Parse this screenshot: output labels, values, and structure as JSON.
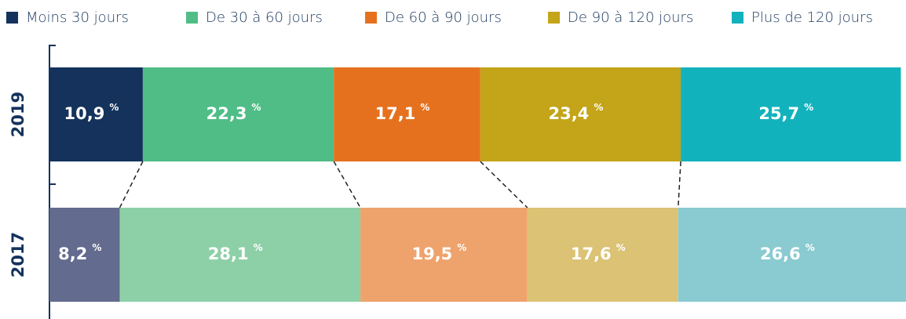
{
  "chart_data": {
    "type": "stacked-bar-horizontal",
    "categories": [
      "2019",
      "2017"
    ],
    "value_unit": "%",
    "series": [
      {
        "name": "Moins 30 jours",
        "colors": [
          "#14325c",
          "#636b8e"
        ],
        "values": [
          10.9,
          8.2
        ],
        "value_labels": [
          "10,9",
          "8,2"
        ]
      },
      {
        "name": "De 30 à 60 jours",
        "colors": [
          "#50bd87",
          "#8dd0a8"
        ],
        "values": [
          22.3,
          28.1
        ],
        "value_labels": [
          "22,3",
          "28,1"
        ]
      },
      {
        "name": "De 60 à 90 jours",
        "colors": [
          "#e5711f",
          "#efa36c"
        ],
        "values": [
          17.1,
          19.5
        ],
        "value_labels": [
          "17,1",
          "19,5"
        ]
      },
      {
        "name": "De 90 à 120 jours",
        "colors": [
          "#c4a418",
          "#dbc274"
        ],
        "values": [
          23.4,
          17.6
        ],
        "value_labels": [
          "23,4",
          "17,6"
        ]
      },
      {
        "name": "Plus de 120 jours",
        "colors": [
          "#12b2bd",
          "#89cbd1"
        ],
        "values": [
          25.7,
          26.6
        ],
        "value_labels": [
          "25,7",
          "26,6"
        ]
      }
    ],
    "xlim": [
      0,
      100
    ],
    "legend": "top"
  }
}
